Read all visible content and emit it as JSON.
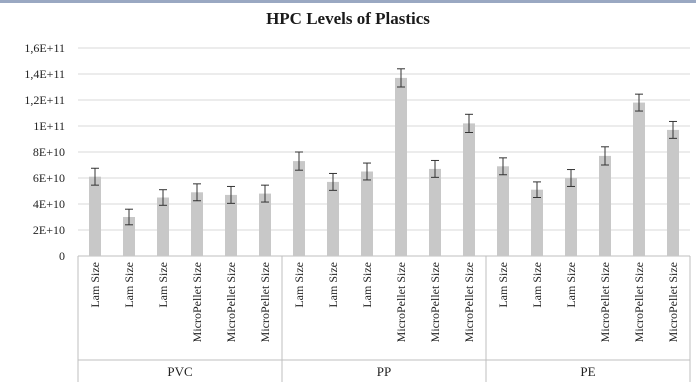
{
  "chart_data": {
    "type": "bar",
    "title": "HPC  Levels of Plastics",
    "xlabel": "",
    "ylabel": "",
    "ylim": [
      0,
      160000000000
    ],
    "yticks": [
      0,
      20000000000,
      40000000000,
      60000000000,
      80000000000,
      100000000000,
      120000000000,
      140000000000,
      160000000000
    ],
    "ytick_labels": [
      "0",
      "2E+10",
      "4E+10",
      "6E+10",
      "8E+10",
      "1E+11",
      "1,2E+11",
      "1,4E+11",
      "1,6E+11"
    ],
    "grid": true,
    "legend": "none",
    "bar_color": "#c8c8c8",
    "grid_color": "#d9d9d9",
    "groups": [
      {
        "name": "PVC",
        "categories": [
          "Lam Size",
          "Lam Size",
          "Lam Size",
          "MicroPellet Size",
          "MicroPellet Size",
          "MicroPellet Size"
        ]
      },
      {
        "name": "PP",
        "categories": [
          "Lam Size",
          "Lam Size",
          "Lam Size",
          "MicroPellet Size",
          "MicroPellet Size",
          "MicroPellet Size"
        ]
      },
      {
        "name": "PE",
        "categories": [
          "Lam Size",
          "Lam Size",
          "Lam Size",
          "MicroPellet Size",
          "MicroPellet Size",
          "MicroPellet Size"
        ]
      }
    ],
    "values": [
      61000000000,
      30000000000,
      45000000000,
      49000000000,
      47000000000,
      48000000000,
      73000000000,
      57000000000,
      65000000000,
      137000000000,
      67000000000,
      102000000000,
      69000000000,
      51000000000,
      60000000000,
      77000000000,
      118000000000,
      97000000000
    ],
    "errors": [
      6500000000,
      6000000000,
      6000000000,
      6500000000,
      6500000000,
      6500000000,
      7000000000,
      6500000000,
      6500000000,
      7000000000,
      6500000000,
      7000000000,
      6500000000,
      6000000000,
      6500000000,
      7000000000,
      6500000000,
      6500000000
    ]
  }
}
